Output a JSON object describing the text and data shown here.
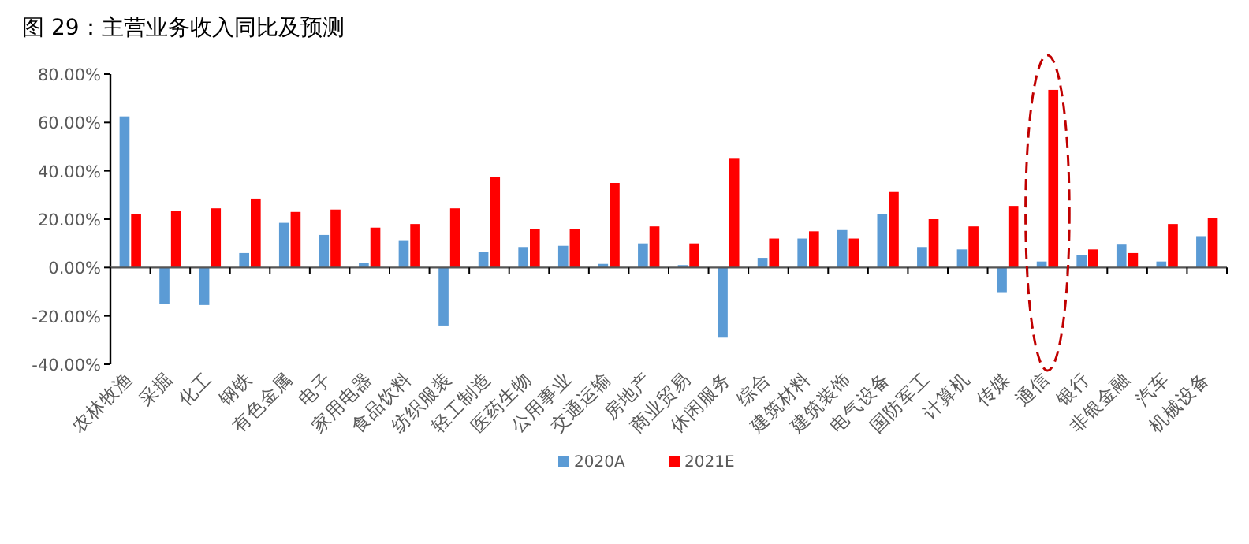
{
  "chart_data": {
    "type": "bar",
    "title": "图 29：主营业务收入同比及预测",
    "categories": [
      "农林牧渔",
      "采掘",
      "化工",
      "钢铁",
      "有色金属",
      "电子",
      "家用电器",
      "食品饮料",
      "纺织服装",
      "轻工制造",
      "医药生物",
      "公用事业",
      "交通运输",
      "房地产",
      "商业贸易",
      "休闲服务",
      "综合",
      "建筑材料",
      "建筑装饰",
      "电气设备",
      "国防军工",
      "计算机",
      "传媒",
      "通信",
      "银行",
      "非银金融",
      "汽车",
      "机械设备"
    ],
    "series": [
      {
        "name": "2020A",
        "color": "#5b9bd5",
        "values": [
          62.5,
          -15,
          -15.5,
          6,
          18.5,
          13.5,
          2,
          11,
          -24,
          6.5,
          8.5,
          9,
          1.5,
          10,
          1,
          -29,
          4,
          12,
          15.5,
          22,
          8.5,
          7.5,
          -10.5,
          2.5,
          5,
          9.5,
          2.5,
          13
        ]
      },
      {
        "name": "2021E",
        "color": "#ff0000",
        "values": [
          22,
          23.5,
          24.5,
          28.5,
          23,
          24,
          16.5,
          18,
          24.5,
          37.5,
          16,
          16,
          35,
          17,
          10,
          45,
          12,
          15,
          12,
          31.5,
          20,
          17,
          25.5,
          73.5,
          7.5,
          6,
          18,
          20.5
        ]
      }
    ],
    "ylim": [
      -40,
      80
    ],
    "yticks": [
      {
        "value": -40,
        "label": "-40.00%"
      },
      {
        "value": -20,
        "label": "-20.00%"
      },
      {
        "value": 0,
        "label": "0.00%"
      },
      {
        "value": 20,
        "label": "20.00%"
      },
      {
        "value": 40,
        "label": "40.00%"
      },
      {
        "value": 60,
        "label": "60.00%"
      },
      {
        "value": 80,
        "label": "80.00%"
      }
    ],
    "legend": "bottom"
  }
}
